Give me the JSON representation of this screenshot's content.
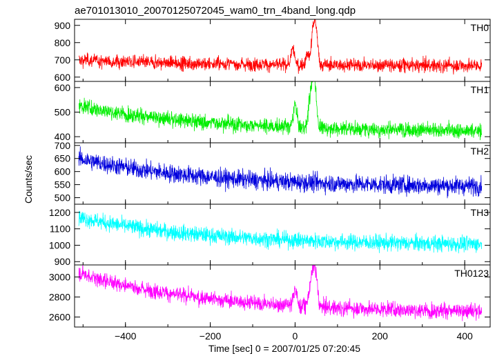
{
  "title": "ae701013010_20070125072045_wam0_trn_4band_long.qdp",
  "xlabel": "Time [sec] 0 = 2007/01/25 07:20:45",
  "ylabel": "Counts/sec",
  "chart_data": [
    {
      "type": "line",
      "name": "TH0",
      "color": "#ff0000",
      "xlim": [
        -520,
        460
      ],
      "ylim": [
        575,
        935
      ],
      "yticks": [
        600,
        700,
        800,
        900
      ],
      "start_level": 700,
      "end_level": 665,
      "noise": 28,
      "features": [
        {
          "x": -5,
          "value": 780
        },
        {
          "x": 30,
          "value": 745
        },
        {
          "x": 43,
          "value": 925
        },
        {
          "x": 50,
          "value": 870
        }
      ]
    },
    {
      "type": "line",
      "name": "TH1",
      "color": "#00ee00",
      "xlim": [
        -520,
        460
      ],
      "ylim": [
        375,
        625
      ],
      "yticks": [
        400,
        500,
        600
      ],
      "start_level": 525,
      "end_level": 420,
      "noise": 22,
      "features": [
        {
          "x": 0,
          "value": 545
        },
        {
          "x": 35,
          "value": 570
        },
        {
          "x": 43,
          "value": 620
        },
        {
          "x": 48,
          "value": 560
        }
      ]
    },
    {
      "type": "line",
      "name": "TH2",
      "color": "#0000dd",
      "xlim": [
        -520,
        460
      ],
      "ylim": [
        475,
        710
      ],
      "yticks": [
        500,
        550,
        600,
        650,
        700
      ],
      "start_level": 650,
      "end_level": 540,
      "noise": 25,
      "features": []
    },
    {
      "type": "line",
      "name": "TH3",
      "color": "#00ffff",
      "xlim": [
        -520,
        460
      ],
      "ylim": [
        880,
        1250
      ],
      "yticks": [
        900,
        1000,
        1100,
        1200
      ],
      "start_level": 1170,
      "end_level": 1000,
      "noise": 35,
      "features": []
    },
    {
      "type": "line",
      "name": "TH0123",
      "color": "#ff00ff",
      "xlim": [
        -520,
        460
      ],
      "ylim": [
        2500,
        3120
      ],
      "yticks": [
        2600,
        2800,
        3000
      ],
      "start_level": 3040,
      "end_level": 2640,
      "noise": 55,
      "features": [
        {
          "x": 0,
          "value": 2920
        },
        {
          "x": 35,
          "value": 2900
        },
        {
          "x": 43,
          "value": 3100
        },
        {
          "x": 50,
          "value": 2980
        }
      ]
    }
  ],
  "x_ticks": [
    -400,
    -200,
    0,
    200,
    400
  ]
}
